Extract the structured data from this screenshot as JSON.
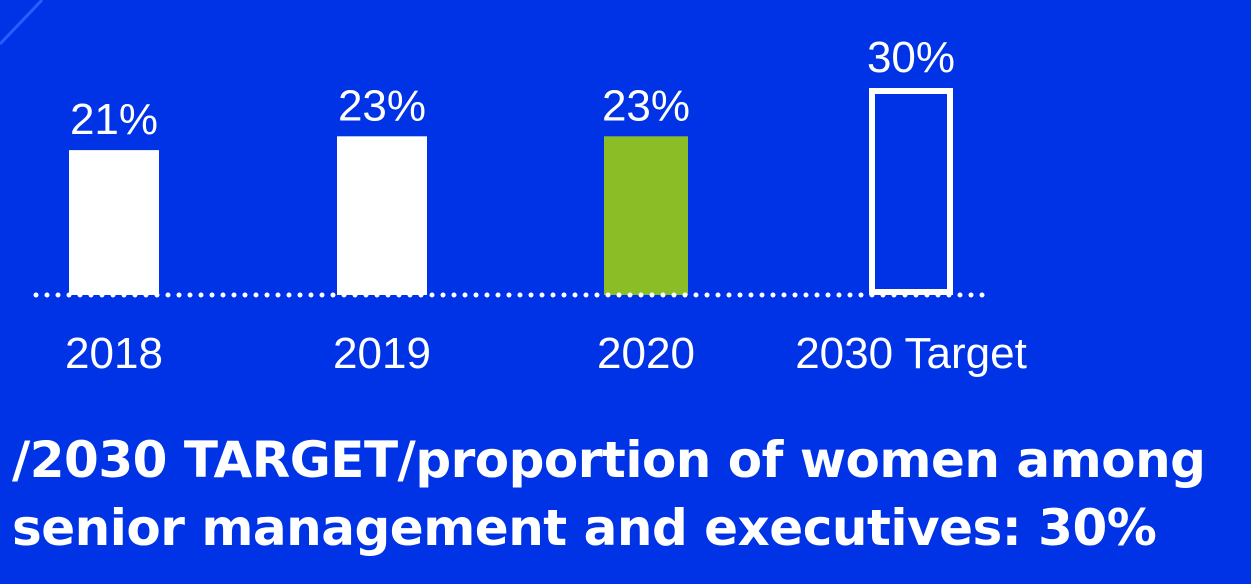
{
  "chart_data": {
    "type": "bar",
    "categories": [
      "2018",
      "2019",
      "2020",
      "2030 Target"
    ],
    "values": [
      21,
      23,
      23,
      30
    ],
    "value_labels": [
      "21%",
      "23%",
      "23%",
      "30%"
    ],
    "bar_styles": [
      "solid",
      "solid",
      "solid",
      "outline"
    ],
    "bar_colors": [
      "#ffffff",
      "#ffffff",
      "#8bbd26",
      "#ffffff"
    ],
    "baseline_style": "dotted",
    "grid": false,
    "ylim": [
      0,
      30
    ]
  },
  "caption": {
    "line1": "/2030 TARGET/proportion of women among",
    "line2": "senior management and executives: 30%"
  },
  "colors": {
    "background": "#0033e6",
    "text": "#ffffff",
    "highlight": "#8bbd26"
  }
}
